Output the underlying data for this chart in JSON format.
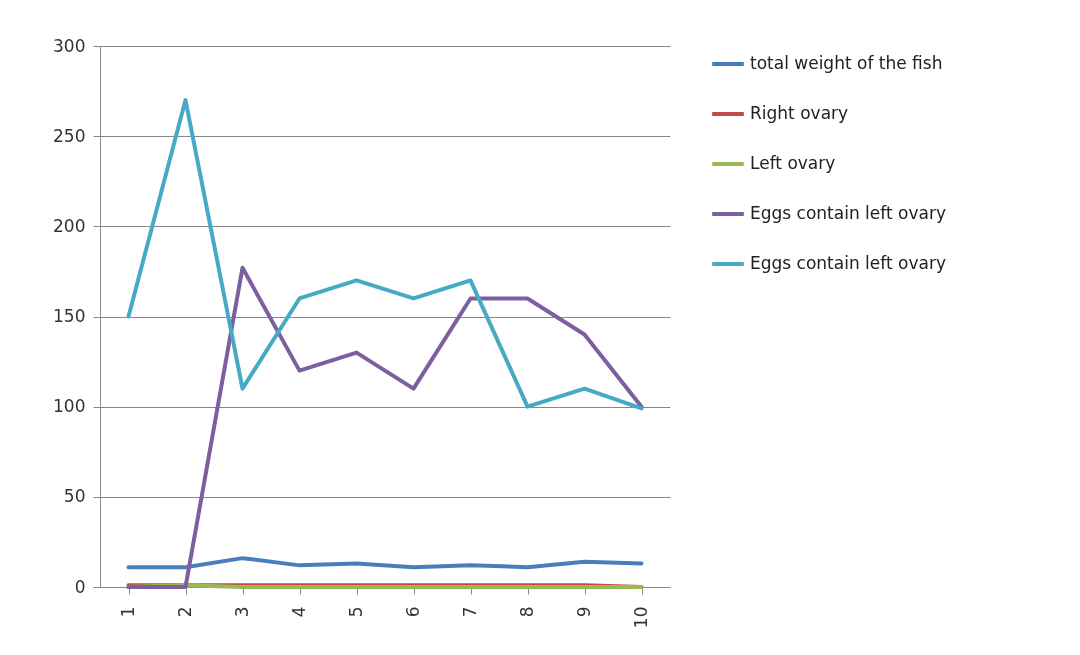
{
  "chart_data": {
    "type": "line",
    "categories": [
      "1",
      "2",
      "3",
      "4",
      "5",
      "6",
      "7",
      "8",
      "9",
      "10"
    ],
    "series": [
      {
        "name": "total weight of the fish",
        "color": "#4a7ebb",
        "values": [
          11,
          11,
          16,
          12,
          13,
          11,
          12,
          11,
          14,
          13
        ]
      },
      {
        "name": "Right ovary",
        "color": "#be4b48",
        "values": [
          1,
          1,
          1,
          1,
          1,
          1,
          1,
          1,
          1,
          0
        ]
      },
      {
        "name": "Left ovary",
        "color": "#98b954",
        "values": [
          0,
          1,
          0,
          0,
          0,
          0,
          0,
          0,
          0,
          0
        ]
      },
      {
        "name": "Eggs contain left ovary",
        "color": "#7d5fa0",
        "values": [
          0,
          0,
          177,
          120,
          130,
          110,
          160,
          160,
          140,
          100
        ]
      },
      {
        "name": "Eggs  contain left ovary",
        "color": "#46aac5",
        "values": [
          150,
          270,
          110,
          160,
          170,
          160,
          170,
          100,
          110,
          99
        ]
      }
    ],
    "ylim": [
      0,
      300
    ],
    "yticks": [
      0,
      50,
      100,
      150,
      200,
      250,
      300
    ],
    "grid": "y",
    "legend": "right",
    "marker": "none",
    "line_style": "solid"
  }
}
